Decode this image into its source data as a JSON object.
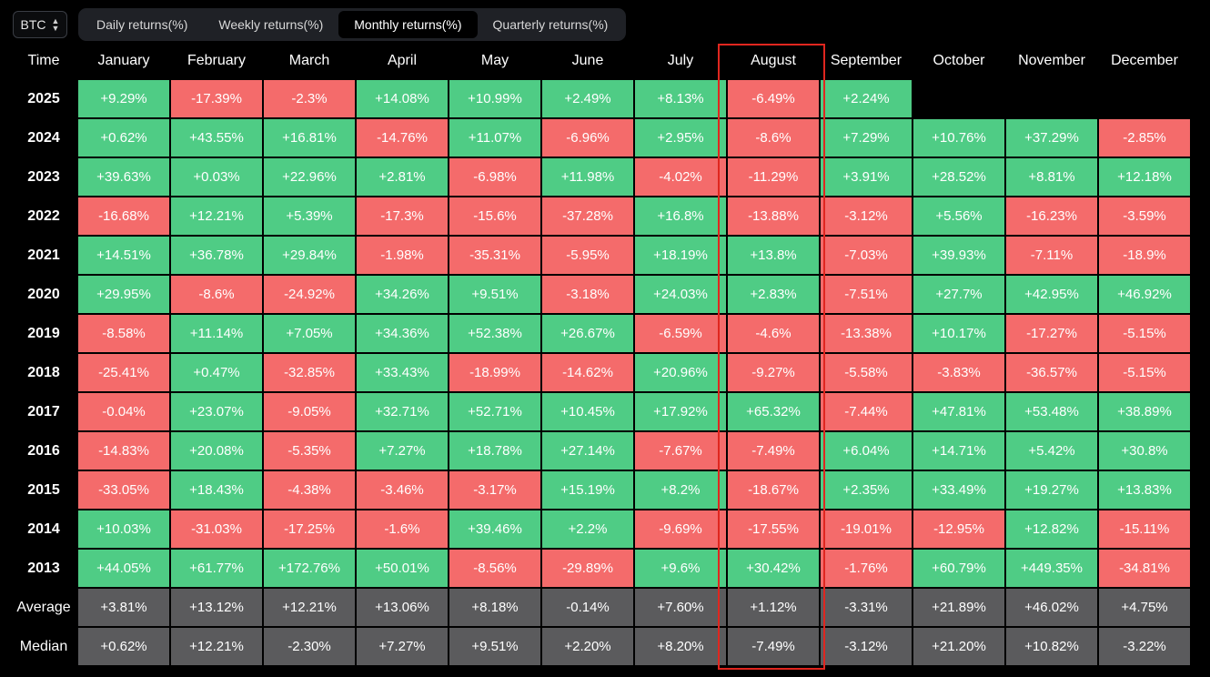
{
  "toolbar": {
    "asset": "BTC",
    "tabs": [
      {
        "label": "Daily returns(%)",
        "active": false
      },
      {
        "label": "Weekly returns(%)",
        "active": false
      },
      {
        "label": "Monthly returns(%)",
        "active": true
      },
      {
        "label": "Quarterly returns(%)",
        "active": false
      }
    ]
  },
  "colors": {
    "positive": "#4fcc85",
    "negative": "#f46b6b",
    "stat": "#5b5b5d",
    "highlight": "#e0261f"
  },
  "chart_data": {
    "type": "table",
    "columns": [
      "Time",
      "January",
      "February",
      "March",
      "April",
      "May",
      "June",
      "July",
      "August",
      "September",
      "October",
      "November",
      "December"
    ],
    "highlighted_column": "August",
    "rows": [
      {
        "label": "2025",
        "values": [
          "+9.29%",
          "-17.39%",
          "-2.3%",
          "+14.08%",
          "+10.99%",
          "+2.49%",
          "+8.13%",
          "-6.49%",
          "+2.24%",
          "",
          "",
          ""
        ]
      },
      {
        "label": "2024",
        "values": [
          "+0.62%",
          "+43.55%",
          "+16.81%",
          "-14.76%",
          "+11.07%",
          "-6.96%",
          "+2.95%",
          "-8.6%",
          "+7.29%",
          "+10.76%",
          "+37.29%",
          "-2.85%"
        ]
      },
      {
        "label": "2023",
        "values": [
          "+39.63%",
          "+0.03%",
          "+22.96%",
          "+2.81%",
          "-6.98%",
          "+11.98%",
          "-4.02%",
          "-11.29%",
          "+3.91%",
          "+28.52%",
          "+8.81%",
          "+12.18%"
        ]
      },
      {
        "label": "2022",
        "values": [
          "-16.68%",
          "+12.21%",
          "+5.39%",
          "-17.3%",
          "-15.6%",
          "-37.28%",
          "+16.8%",
          "-13.88%",
          "-3.12%",
          "+5.56%",
          "-16.23%",
          "-3.59%"
        ]
      },
      {
        "label": "2021",
        "values": [
          "+14.51%",
          "+36.78%",
          "+29.84%",
          "-1.98%",
          "-35.31%",
          "-5.95%",
          "+18.19%",
          "+13.8%",
          "-7.03%",
          "+39.93%",
          "-7.11%",
          "-18.9%"
        ]
      },
      {
        "label": "2020",
        "values": [
          "+29.95%",
          "-8.6%",
          "-24.92%",
          "+34.26%",
          "+9.51%",
          "-3.18%",
          "+24.03%",
          "+2.83%",
          "-7.51%",
          "+27.7%",
          "+42.95%",
          "+46.92%"
        ]
      },
      {
        "label": "2019",
        "values": [
          "-8.58%",
          "+11.14%",
          "+7.05%",
          "+34.36%",
          "+52.38%",
          "+26.67%",
          "-6.59%",
          "-4.6%",
          "-13.38%",
          "+10.17%",
          "-17.27%",
          "-5.15%"
        ]
      },
      {
        "label": "2018",
        "values": [
          "-25.41%",
          "+0.47%",
          "-32.85%",
          "+33.43%",
          "-18.99%",
          "-14.62%",
          "+20.96%",
          "-9.27%",
          "-5.58%",
          "-3.83%",
          "-36.57%",
          "-5.15%"
        ]
      },
      {
        "label": "2017",
        "values": [
          "-0.04%",
          "+23.07%",
          "-9.05%",
          "+32.71%",
          "+52.71%",
          "+10.45%",
          "+17.92%",
          "+65.32%",
          "-7.44%",
          "+47.81%",
          "+53.48%",
          "+38.89%"
        ]
      },
      {
        "label": "2016",
        "values": [
          "-14.83%",
          "+20.08%",
          "-5.35%",
          "+7.27%",
          "+18.78%",
          "+27.14%",
          "-7.67%",
          "-7.49%",
          "+6.04%",
          "+14.71%",
          "+5.42%",
          "+30.8%"
        ]
      },
      {
        "label": "2015",
        "values": [
          "-33.05%",
          "+18.43%",
          "-4.38%",
          "-3.46%",
          "-3.17%",
          "+15.19%",
          "+8.2%",
          "-18.67%",
          "+2.35%",
          "+33.49%",
          "+19.27%",
          "+13.83%"
        ]
      },
      {
        "label": "2014",
        "values": [
          "+10.03%",
          "-31.03%",
          "-17.25%",
          "-1.6%",
          "+39.46%",
          "+2.2%",
          "-9.69%",
          "-17.55%",
          "-19.01%",
          "-12.95%",
          "+12.82%",
          "-15.11%"
        ]
      },
      {
        "label": "2013",
        "values": [
          "+44.05%",
          "+61.77%",
          "+172.76%",
          "+50.01%",
          "-8.56%",
          "-29.89%",
          "+9.6%",
          "+30.42%",
          "-1.76%",
          "+60.79%",
          "+449.35%",
          "-34.81%"
        ]
      }
    ],
    "summary_rows": [
      {
        "label": "Average",
        "values": [
          "+3.81%",
          "+13.12%",
          "+12.21%",
          "+13.06%",
          "+8.18%",
          "-0.14%",
          "+7.60%",
          "+1.12%",
          "-3.31%",
          "+21.89%",
          "+46.02%",
          "+4.75%"
        ]
      },
      {
        "label": "Median",
        "values": [
          "+0.62%",
          "+12.21%",
          "-2.30%",
          "+7.27%",
          "+9.51%",
          "+2.20%",
          "+8.20%",
          "-7.49%",
          "-3.12%",
          "+21.20%",
          "+10.82%",
          "-3.22%"
        ]
      }
    ]
  }
}
